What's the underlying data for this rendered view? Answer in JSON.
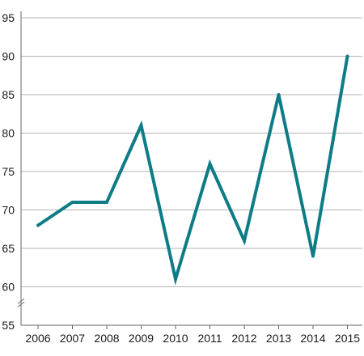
{
  "chart_data": {
    "type": "line",
    "title": "",
    "xlabel": "",
    "ylabel": "",
    "x": [
      "2006",
      "2007",
      "2008",
      "2009",
      "2010",
      "2011",
      "2012",
      "2013",
      "2014",
      "2015"
    ],
    "series": [
      {
        "values": [
          68,
          71,
          71,
          81,
          61,
          76,
          66,
          85,
          64,
          90
        ]
      }
    ],
    "ylim": [
      55,
      95
    ],
    "yticks": [
      55,
      60,
      65,
      70,
      75,
      80,
      85,
      90,
      95
    ],
    "y_axis_break": true,
    "grid": "horizontal",
    "legend": "none",
    "colors": {
      "series": "#0e7c86",
      "grid": "#b3b3b3",
      "axis": "#666666",
      "text": "#1a1a1a"
    }
  }
}
